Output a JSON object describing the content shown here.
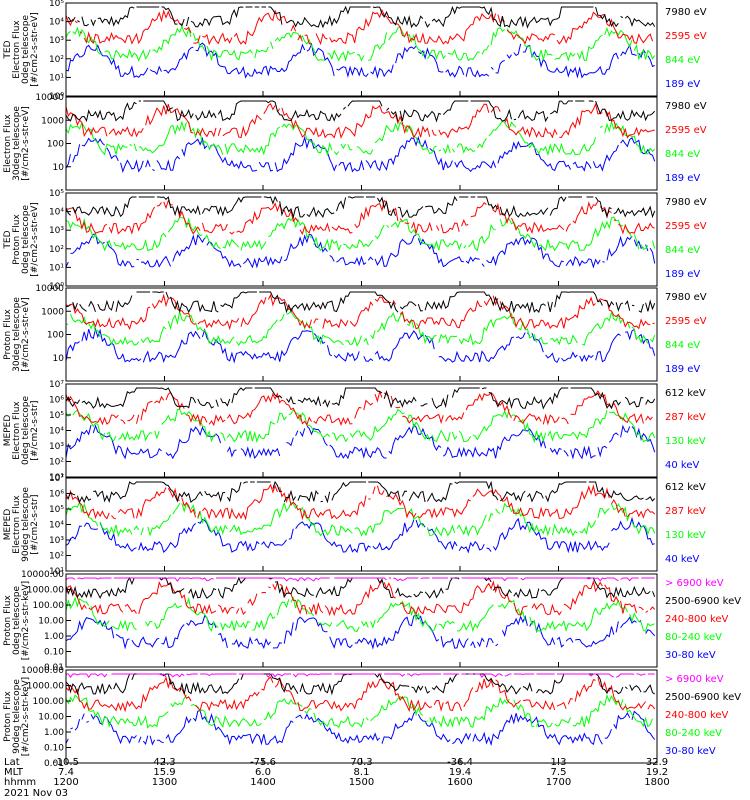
{
  "date_label": "2021 Nov 03",
  "orbit_labels": {
    "lat": "Lat",
    "mlt": "MLT",
    "hhmm": "hhmm"
  },
  "orbit_ticks": [
    {
      "lat": "-10.5",
      "mlt": "7.4",
      "hhmm": "1200"
    },
    {
      "lat": "42.3",
      "mlt": "15.9",
      "hhmm": "1300"
    },
    {
      "lat": "-75.6",
      "mlt": "6.0",
      "hhmm": "1400"
    },
    {
      "lat": "70.3",
      "mlt": "8.1",
      "hhmm": "1500"
    },
    {
      "lat": "-36.4",
      "mlt": "19.4",
      "hhmm": "1600"
    },
    {
      "lat": "1.3",
      "mlt": "7.5",
      "hhmm": "1700"
    },
    {
      "lat": "32.9",
      "mlt": "19.2",
      "hhmm": "1800"
    }
  ],
  "colors": {
    "black": "#000000",
    "red": "#ff0000",
    "green": "#00ff00",
    "blue": "#0000ff",
    "magenta": "#ff00ff"
  },
  "chart_data": [
    {
      "type": "line",
      "ylabel": [
        "TED",
        "Electron Flux",
        "0deg telescope",
        "[#/cm2-s-str-eV]"
      ],
      "log": true,
      "ylim": [
        1,
        100000
      ],
      "yticks": [
        "10⁰",
        "10¹",
        "10²",
        "10³",
        "10⁴",
        "10⁵"
      ],
      "legend": [
        {
          "text": "7980 eV",
          "color": "#000000"
        },
        {
          "text": "2595 eV",
          "color": "#ff0000"
        },
        {
          "text": "844 eV",
          "color": "#00ff00"
        },
        {
          "text": "189 eV",
          "color": "#0000ff"
        }
      ]
    },
    {
      "type": "line",
      "ylabel": [
        "Electron Flux",
        "30deg telescope",
        "[#/cm2-s-str-eV]"
      ],
      "log": true,
      "ylim": [
        1,
        10000
      ],
      "yticks": [
        "",
        "10",
        "100",
        "1000",
        "10000"
      ],
      "legend": [
        {
          "text": "7980 eV",
          "color": "#000000"
        },
        {
          "text": "2595 eV",
          "color": "#ff0000"
        },
        {
          "text": "844 eV",
          "color": "#00ff00"
        },
        {
          "text": "189 eV",
          "color": "#0000ff"
        }
      ]
    },
    {
      "type": "line",
      "ylabel": [
        "TED",
        "Proton Flux",
        "0deg telescope",
        "[#/cm2-s-str-eV]"
      ],
      "log": true,
      "ylim": [
        1,
        100000
      ],
      "yticks": [
        "10⁰",
        "10¹",
        "10²",
        "10³",
        "10⁴",
        "10⁵"
      ],
      "legend": [
        {
          "text": "7980 eV",
          "color": "#000000"
        },
        {
          "text": "2595 eV",
          "color": "#ff0000"
        },
        {
          "text": "844 eV",
          "color": "#00ff00"
        },
        {
          "text": "189 eV",
          "color": "#0000ff"
        }
      ]
    },
    {
      "type": "line",
      "ylabel": [
        "Proton Flux",
        "30deg telescope",
        "[#/cm2-s-str-eV]"
      ],
      "log": true,
      "ylim": [
        1,
        10000
      ],
      "yticks": [
        "",
        "10",
        "100",
        "1000",
        "10000"
      ],
      "legend": [
        {
          "text": "7980 eV",
          "color": "#000000"
        },
        {
          "text": "2595 eV",
          "color": "#ff0000"
        },
        {
          "text": "844 eV",
          "color": "#00ff00"
        },
        {
          "text": "189 eV",
          "color": "#0000ff"
        }
      ]
    },
    {
      "type": "line",
      "ylabel": [
        "MEPED",
        "Electron Flux",
        "0deg telescope",
        "[#/cm2-s-str]"
      ],
      "log": true,
      "ylim": [
        10,
        10000000
      ],
      "yticks": [
        "10¹",
        "10²",
        "10³",
        "10⁴",
        "10⁵",
        "10⁶",
        "10⁷"
      ],
      "legend": [
        {
          "text": "612 keV",
          "color": "#000000"
        },
        {
          "text": "287 keV",
          "color": "#ff0000"
        },
        {
          "text": "130 keV",
          "color": "#00ff00"
        },
        {
          "text": "40 keV",
          "color": "#0000ff"
        }
      ]
    },
    {
      "type": "line",
      "ylabel": [
        "MEPED",
        "Electron Flux",
        "90deg telescope",
        "[#/cm2-s-str]"
      ],
      "log": true,
      "ylim": [
        10,
        10000000
      ],
      "yticks": [
        "10¹",
        "10²",
        "10³",
        "10⁴",
        "10⁵",
        "10⁶",
        "10⁷"
      ],
      "legend": [
        {
          "text": "612 keV",
          "color": "#000000"
        },
        {
          "text": "287 keV",
          "color": "#ff0000"
        },
        {
          "text": "130 keV",
          "color": "#00ff00"
        },
        {
          "text": "40 keV",
          "color": "#0000ff"
        }
      ]
    },
    {
      "type": "line",
      "ylabel": [
        "Proton Flux",
        "0deg telescope",
        "[#/cm2-s-str-keV]"
      ],
      "log": true,
      "ylim": [
        0.01,
        10000
      ],
      "yticks": [
        "0.01",
        "0.10",
        "1.00",
        "10.00",
        "100.00",
        "1000.00",
        "10000.00"
      ],
      "legend": [
        {
          "text": "> 6900 keV",
          "color": "#ff00ff"
        },
        {
          "text": "2500-6900 keV",
          "color": "#000000"
        },
        {
          "text": "240-800 keV",
          "color": "#ff0000"
        },
        {
          "text": "80-240 keV",
          "color": "#00ff00"
        },
        {
          "text": "30-80 keV",
          "color": "#0000ff"
        }
      ]
    },
    {
      "type": "line",
      "ylabel": [
        "Proton Flux",
        "90deg telescope",
        "[#/cm2-s-str-keV]"
      ],
      "log": true,
      "ylim": [
        0.01,
        10000
      ],
      "yticks": [
        "0.01",
        "0.10",
        "1.00",
        "10.00",
        "100.00",
        "1000.00",
        "10000.00"
      ],
      "legend": [
        {
          "text": "> 6900 keV",
          "color": "#ff00ff"
        },
        {
          "text": "2500-6900 keV",
          "color": "#000000"
        },
        {
          "text": "240-800 keV",
          "color": "#ff0000"
        },
        {
          "text": "80-240 keV",
          "color": "#00ff00"
        },
        {
          "text": "30-80 keV",
          "color": "#0000ff"
        }
      ]
    }
  ]
}
